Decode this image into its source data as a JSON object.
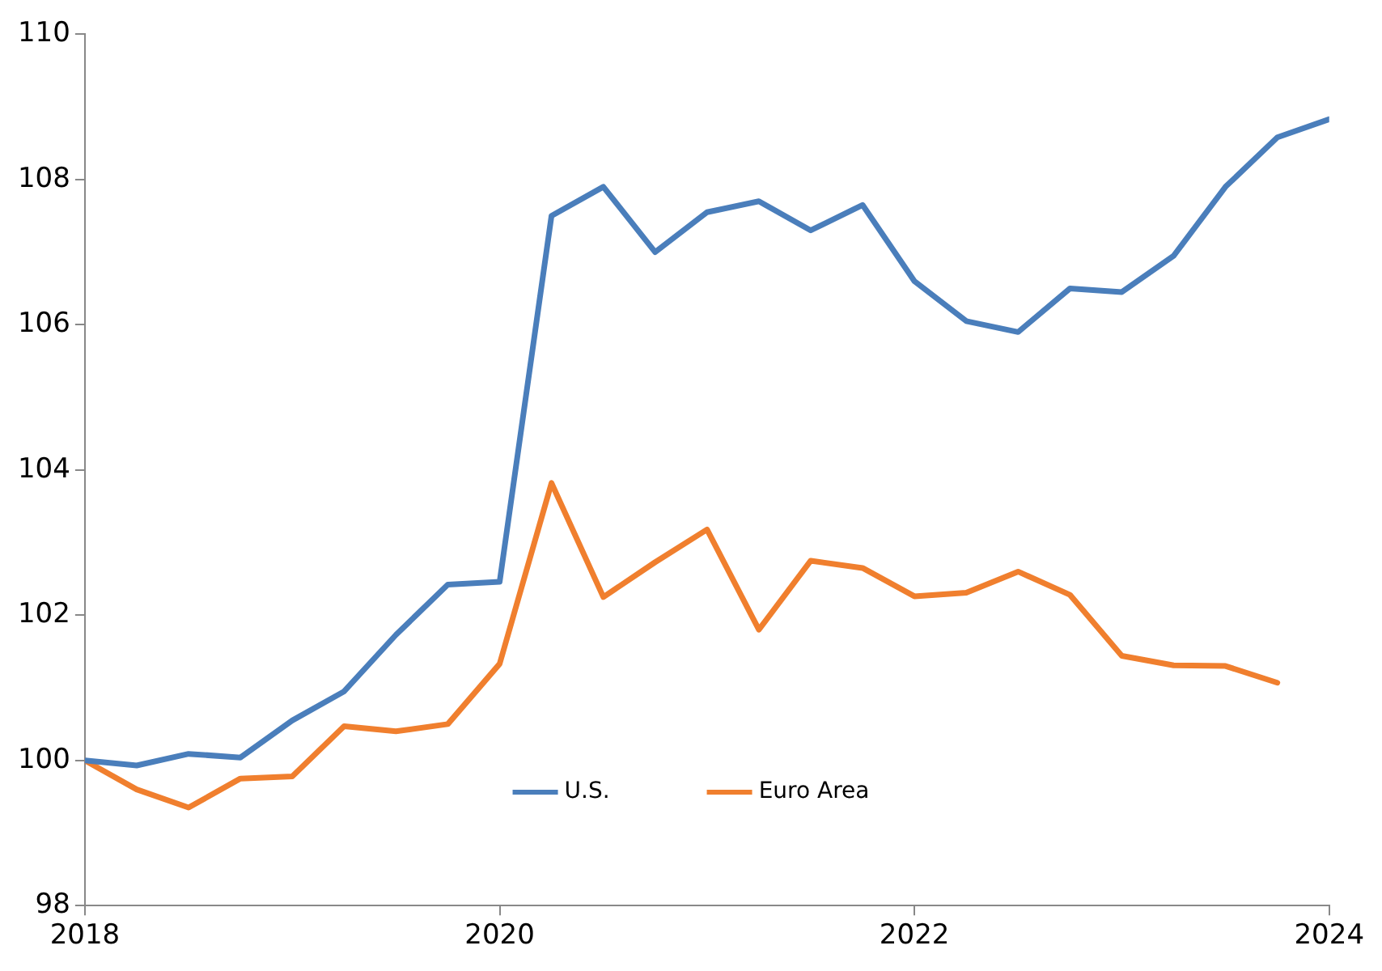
{
  "chart_data": {
    "type": "line",
    "xlim": [
      2018,
      2024
    ],
    "xticks": [
      2018,
      2020,
      2022,
      2024
    ],
    "ylim": [
      98,
      110
    ],
    "yticks": [
      98,
      100,
      102,
      104,
      106,
      108,
      110
    ],
    "grid": false,
    "legend": "bottom",
    "marker": "none",
    "line_style": "solid",
    "x": [
      2018,
      2018.25,
      2018.5,
      2018.75,
      2019,
      2019.25,
      2019.5,
      2019.75,
      2020,
      2020.25,
      2020.5,
      2020.75,
      2021,
      2021.25,
      2021.5,
      2021.75,
      2022,
      2022.25,
      2022.5,
      2022.75,
      2023,
      2023.25,
      2023.5,
      2023.75,
      2024
    ],
    "series": [
      {
        "name": "U.S.",
        "color": "#4a7ebb",
        "values": [
          100.0,
          99.93,
          100.09,
          100.04,
          100.55,
          100.95,
          101.73,
          102.42,
          102.46,
          107.5,
          107.9,
          107.0,
          107.55,
          107.7,
          107.3,
          107.65,
          106.6,
          106.05,
          105.9,
          106.5,
          106.45,
          106.95,
          107.9,
          108.58,
          108.83
        ]
      },
      {
        "name": "Euro Area",
        "color": "#f07f2e",
        "values": [
          100.0,
          99.6,
          99.35,
          99.75,
          99.78,
          100.47,
          100.4,
          100.5,
          101.33,
          103.82,
          102.25,
          102.73,
          103.18,
          101.8,
          102.75,
          102.65,
          102.26,
          102.31,
          102.6,
          102.28,
          101.44,
          101.31,
          101.3,
          101.07,
          null
        ]
      }
    ]
  }
}
